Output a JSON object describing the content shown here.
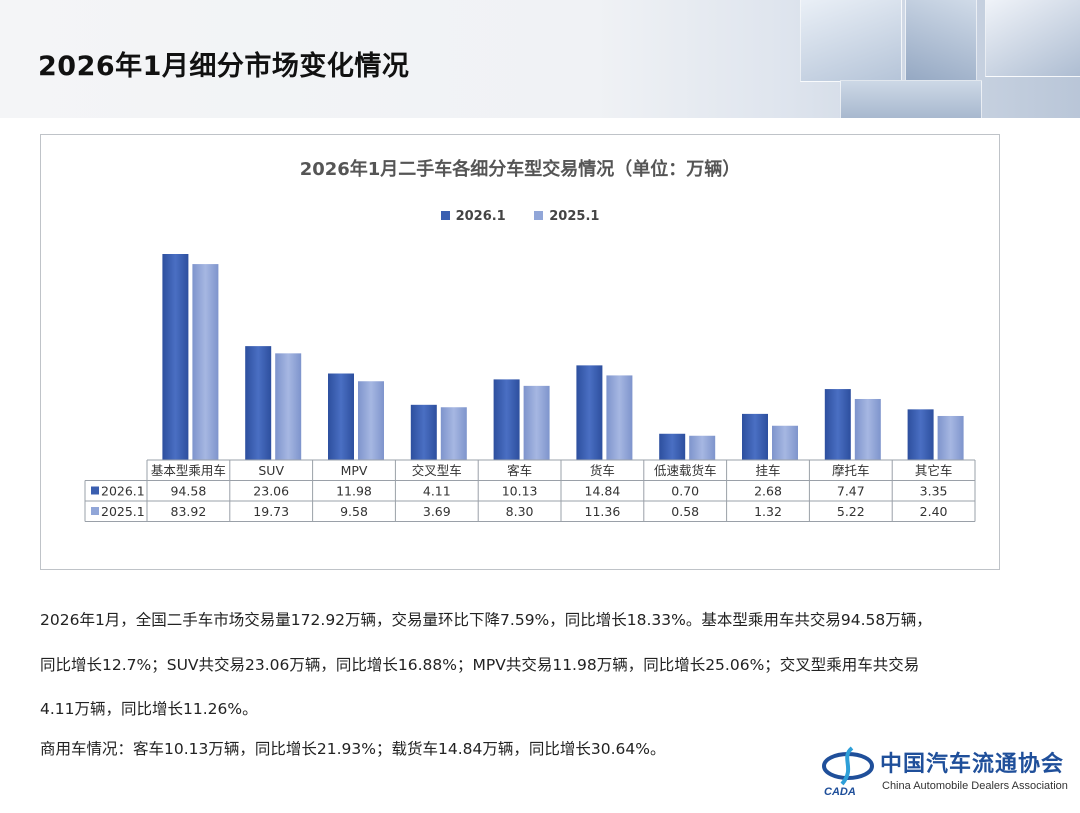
{
  "page": {
    "title": "2026年1月细分市场变化情况"
  },
  "chart_data": {
    "type": "bar",
    "title": "2026年1月二手车各细分车型交易情况（单位：万辆）",
    "categories": [
      "基本型乘用车",
      "SUV",
      "MPV",
      "交叉型车",
      "客车",
      "货车",
      "低速载货车",
      "挂车",
      "摩托车",
      "其它车"
    ],
    "series": [
      {
        "name": "2026.1",
        "color": "#3b5fb0",
        "values": [
          94.58,
          23.06,
          11.98,
          4.11,
          10.13,
          14.84,
          0.7,
          2.68,
          7.47,
          3.35
        ]
      },
      {
        "name": "2025.1",
        "color": "#91a6d8",
        "values": [
          83.92,
          19.73,
          9.58,
          3.69,
          8.3,
          11.36,
          0.58,
          1.32,
          5.22,
          2.4
        ]
      }
    ],
    "value_labels": [
      [
        "94.58",
        "23.06",
        "11.98",
        "4.11",
        "10.13",
        "14.84",
        "0.70",
        "2.68",
        "7.47",
        "3.35"
      ],
      [
        "83.92",
        "19.73",
        "9.58",
        "3.69",
        "8.30",
        "11.36",
        "0.58",
        "1.32",
        "5.22",
        "2.40"
      ]
    ],
    "xlabel": "",
    "ylabel": "",
    "data_table": true,
    "legend_position": "top-center",
    "grid": false
  },
  "text": {
    "paragraph1_line1": "2026年1月，全国二手车市场交易量172.92万辆，交易量环比下降7.59%，同比增长18.33%。基本型乘用车共交易94.58万辆，",
    "paragraph1_line2": "同比增长12.7%；SUV共交易23.06万辆，同比增长16.88%；MPV共交易11.98万辆，同比增长25.06%；交叉型乘用车共交易",
    "paragraph1_line3": "4.11万辆，同比增长11.26%。",
    "paragraph2": "商用车情况：客车10.13万辆，同比增长21.93%；载货车14.84万辆，同比增长30.64%。"
  },
  "logo": {
    "name_cn": "中国汽车流通协会",
    "name_en": "China Automobile Dealers Association",
    "abbr": "CADA"
  }
}
